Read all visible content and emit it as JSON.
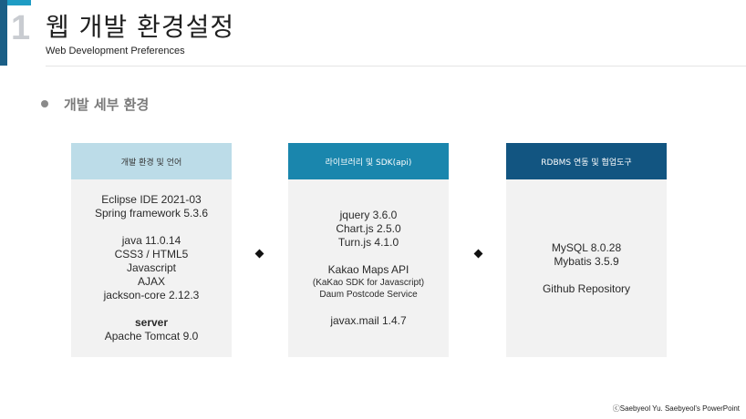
{
  "slide": {
    "number": "1",
    "title": "웹 개발 환경설정",
    "subtitle": "Web Development Preferences"
  },
  "section": {
    "heading": "개발 세부 환경"
  },
  "cards": [
    {
      "header": "개발 환경 및 언어",
      "lines": [
        "Eclipse IDE 2021-03",
        "Spring framework 5.3.6",
        "",
        "java 11.0.14",
        "CSS3 / HTML5",
        "Javascript",
        "AJAX",
        "jackson-core 2.12.3",
        "",
        "server",
        "Apache Tomcat 9.0"
      ]
    },
    {
      "header": "라이브러리 및 SDK(api)",
      "lines": [
        "jquery 3.6.0",
        "Chart.js 2.5.0",
        "Turn.js 4.1.0",
        "",
        "Kakao Maps API",
        "(KaKao SDK for Javascript)",
        "Daum Postcode Service",
        "",
        "javax.mail 1.4.7"
      ]
    },
    {
      "header": "RDBMS 연동 및 협업도구",
      "lines": [
        "MySQL 8.0.28",
        "Mybatis 3.5.9",
        "",
        "Github Repository"
      ]
    }
  ],
  "colors": {
    "card1_header": "#bcdce8",
    "card2_header": "#1a86ad",
    "card3_header": "#125581",
    "accent": "#1f9cc4"
  },
  "footer": {
    "copyright": "ⓒSaebyeol Yu. Saebyeol's PowerPoint"
  }
}
